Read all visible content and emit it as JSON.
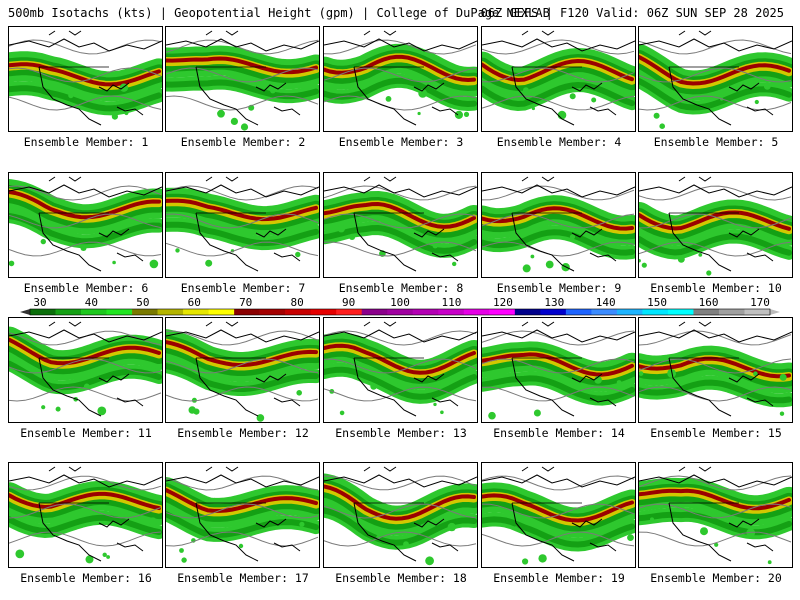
{
  "header": {
    "left": "500mb Isotachs (kts) | Geopotential Height (gpm) | College of DuPage NEXLAB",
    "right": "06Z GEFS | F120 Valid: 06Z SUN SEP 28 2025"
  },
  "caption_prefix": "Ensemble Member: ",
  "members": [
    {
      "label": "Ensemble Member: 1"
    },
    {
      "label": "Ensemble Member: 2"
    },
    {
      "label": "Ensemble Member: 3"
    },
    {
      "label": "Ensemble Member: 4"
    },
    {
      "label": "Ensemble Member: 5"
    },
    {
      "label": "Ensemble Member: 6"
    },
    {
      "label": "Ensemble Member: 7"
    },
    {
      "label": "Ensemble Member: 8"
    },
    {
      "label": "Ensemble Member: 9"
    },
    {
      "label": "Ensemble Member: 10"
    },
    {
      "label": "Ensemble Member: 11"
    },
    {
      "label": "Ensemble Member: 12"
    },
    {
      "label": "Ensemble Member: 13"
    },
    {
      "label": "Ensemble Member: 14"
    },
    {
      "label": "Ensemble Member: 15"
    },
    {
      "label": "Ensemble Member: 16"
    },
    {
      "label": "Ensemble Member: 17"
    },
    {
      "label": "Ensemble Member: 18"
    },
    {
      "label": "Ensemble Member: 19"
    },
    {
      "label": "Ensemble Member: 20"
    }
  ],
  "colorbar": {
    "labels": [
      "30",
      "40",
      "50",
      "60",
      "70",
      "80",
      "90",
      "100",
      "110",
      "120",
      "130",
      "140",
      "150",
      "160",
      "170"
    ],
    "colors": [
      "#0a6e0a",
      "#14a014",
      "#1ec81e",
      "#22e622",
      "#7a7a00",
      "#b4b400",
      "#e6e600",
      "#ffff00",
      "#8b0000",
      "#a50000",
      "#c80000",
      "#e60000",
      "#ff1e1e",
      "#8b008b",
      "#a000a0",
      "#b400b4",
      "#c800c8",
      "#e600e6",
      "#ff00ff",
      "#00008b",
      "#0000cd",
      "#1e64ff",
      "#3c8cff",
      "#1eb4ff",
      "#00e6ff",
      "#00ffff",
      "#808080",
      "#a0a0a0",
      "#c0c0c0"
    ]
  },
  "jet_colors": {
    "light": "#2ec82e",
    "mid": "#14a014",
    "dark": "#0a6e0a",
    "yellow": "#d2c800",
    "red": "#9b0000"
  }
}
